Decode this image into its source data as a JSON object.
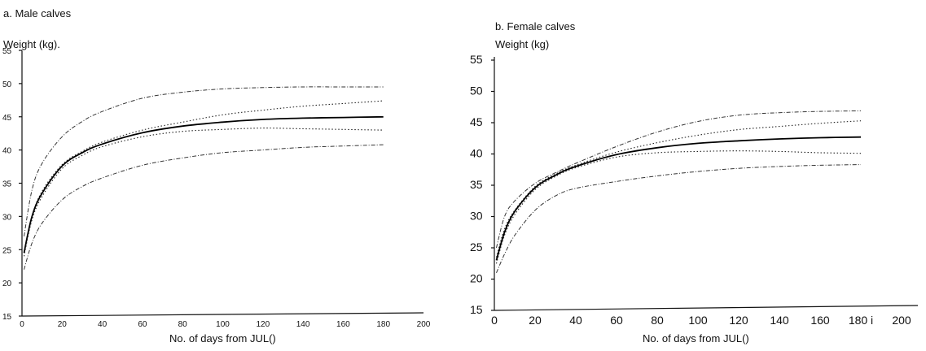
{
  "chart_data": [
    {
      "type": "line",
      "title": "a. Male calves",
      "ylabel": "Weight (kg).",
      "xlabel": "No. of days from JUL()",
      "xlim": [
        0,
        200
      ],
      "ylim": [
        15,
        55
      ],
      "xticks": [
        "0",
        "20",
        "40",
        "60",
        "80",
        "100",
        "120",
        "140",
        "160",
        "180",
        "200"
      ],
      "yticks": [
        "15",
        "20",
        "25",
        "30",
        "35",
        "40",
        "45",
        "50",
        "55"
      ],
      "grid": false,
      "x": [
        1,
        5,
        10,
        20,
        30,
        40,
        60,
        80,
        100,
        120,
        140,
        160,
        180
      ],
      "series": [
        {
          "style": "dash-dot",
          "values": [
            27,
            34,
            38,
            42,
            44.3,
            45.8,
            47.8,
            48.7,
            49.2,
            49.4,
            49.5,
            49.5,
            49.5
          ]
        },
        {
          "style": "dotted",
          "values": [
            24.5,
            30,
            33.8,
            37.8,
            39.8,
            41.2,
            43,
            44.2,
            45.3,
            46,
            46.6,
            47,
            47.4
          ]
        },
        {
          "style": "solid",
          "values": [
            24.5,
            30,
            33.5,
            37.6,
            39.6,
            40.9,
            42.6,
            43.6,
            44.2,
            44.6,
            44.8,
            44.9,
            45
          ]
        },
        {
          "style": "dotted",
          "values": [
            24,
            29.5,
            33,
            37.2,
            39.2,
            40.5,
            42,
            42.8,
            43.1,
            43.3,
            43.2,
            43.1,
            43
          ]
        },
        {
          "style": "dash-dot",
          "values": [
            22,
            26,
            29,
            32.5,
            34.5,
            35.8,
            37.7,
            38.8,
            39.6,
            40,
            40.4,
            40.6,
            40.8
          ]
        }
      ]
    },
    {
      "type": "line",
      "title": "b. Female calves",
      "ylabel": "Weight (kg)",
      "xlabel": "No. of days from JUL()",
      "xlim": [
        0,
        200
      ],
      "ylim": [
        15,
        55
      ],
      "xticks": [
        "0",
        "20",
        "40",
        "60",
        "80",
        "100",
        "120",
        "140",
        "160",
        "180 i",
        "200"
      ],
      "yticks": [
        "15",
        "20",
        "25",
        "30",
        "35",
        "40",
        "45",
        "50",
        "55"
      ],
      "grid": false,
      "x": [
        1,
        5,
        10,
        20,
        30,
        40,
        60,
        80,
        100,
        120,
        140,
        160,
        180
      ],
      "series": [
        {
          "style": "dash-dot",
          "values": [
            25,
            30,
            32.5,
            35.3,
            37,
            38.5,
            41.2,
            43.5,
            45.2,
            46.2,
            46.6,
            46.8,
            46.9
          ]
        },
        {
          "style": "dotted",
          "values": [
            23.5,
            28,
            31,
            34.8,
            36.8,
            38.2,
            40.3,
            41.8,
            43,
            43.9,
            44.4,
            44.9,
            45.3
          ]
        },
        {
          "style": "solid",
          "values": [
            23,
            27.5,
            30.8,
            34.6,
            36.6,
            38,
            39.9,
            41,
            41.7,
            42.1,
            42.4,
            42.6,
            42.7
          ]
        },
        {
          "style": "dotted",
          "values": [
            22.5,
            27,
            30.3,
            34.3,
            36.4,
            37.8,
            39.5,
            40.2,
            40.4,
            40.5,
            40.4,
            40.2,
            40.1
          ]
        },
        {
          "style": "dash-dot",
          "values": [
            21,
            24,
            27,
            31,
            33.3,
            34.5,
            35.6,
            36.5,
            37.2,
            37.7,
            38,
            38.2,
            38.3
          ]
        }
      ]
    }
  ]
}
